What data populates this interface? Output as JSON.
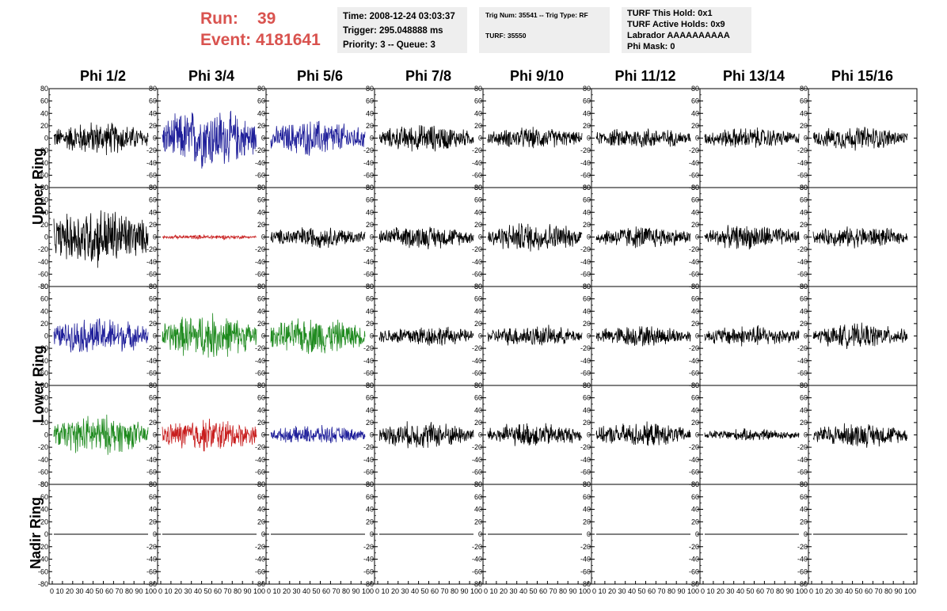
{
  "header": {
    "run_label": "Run:",
    "run_value": "39",
    "event_label": "Event:",
    "event_value": "4181641",
    "time": "Time: 2008-12-24 03:03:37",
    "trigger": "Trigger: 295.048888 ms",
    "priority": "Priority: 3 -- Queue: 3",
    "trig_num": "Trig Num: 35541 -- Trig Type: RF",
    "turf": "TURF: 35550",
    "turf_this_hold": "TURF This Hold: 0x1",
    "turf_active_holds": "TURF Active Holds: 0x9",
    "labrador": "Labrador AAAAAAAAAA",
    "phi_mask": "Phi Mask: 0"
  },
  "columns": [
    "Phi 1/2",
    "Phi 3/4",
    "Phi 5/6",
    "Phi 7/8",
    "Phi 9/10",
    "Phi 11/12",
    "Phi 13/14",
    "Phi 15/16"
  ],
  "rows": [
    "Upper Ring",
    "",
    "Lower Ring",
    "",
    "Nadir Ring"
  ],
  "colors": {
    "black": "#000000",
    "blue": "#1f1f9a",
    "green": "#1e8a1e",
    "red": "#c81e1e"
  },
  "chart_data": {
    "type": "line",
    "ylim": [
      -80,
      80
    ],
    "xlim": [
      0,
      100
    ],
    "y_ticks": [
      80,
      60,
      40,
      20,
      0,
      -20,
      -40,
      -60,
      -80
    ],
    "x_tick_label": "0 10 20 30 40 50 60 70 80 90 100",
    "panels": [
      [
        {
          "color": "black",
          "amp": 22
        },
        {
          "color": "blue",
          "amp": 40
        },
        {
          "color": "blue",
          "amp": 24
        },
        {
          "color": "black",
          "amp": 18
        },
        {
          "color": "black",
          "amp": 14
        },
        {
          "color": "black",
          "amp": 14
        },
        {
          "color": "black",
          "amp": 14
        },
        {
          "color": "black",
          "amp": 16
        }
      ],
      [
        {
          "color": "black",
          "amp": 40
        },
        {
          "color": "red",
          "amp": 3
        },
        {
          "color": "black",
          "amp": 14
        },
        {
          "color": "black",
          "amp": 15
        },
        {
          "color": "black",
          "amp": 20
        },
        {
          "color": "black",
          "amp": 15
        },
        {
          "color": "black",
          "amp": 16
        },
        {
          "color": "black",
          "amp": 14
        }
      ],
      [
        {
          "color": "blue",
          "amp": 24
        },
        {
          "color": "green",
          "amp": 30
        },
        {
          "color": "green",
          "amp": 24
        },
        {
          "color": "black",
          "amp": 14
        },
        {
          "color": "black",
          "amp": 14
        },
        {
          "color": "black",
          "amp": 14
        },
        {
          "color": "black",
          "amp": 14
        },
        {
          "color": "black",
          "amp": 16
        }
      ],
      [
        {
          "color": "green",
          "amp": 26
        },
        {
          "color": "red",
          "amp": 22
        },
        {
          "color": "blue",
          "amp": 12
        },
        {
          "color": "black",
          "amp": 18
        },
        {
          "color": "black",
          "amp": 16
        },
        {
          "color": "black",
          "amp": 16
        },
        {
          "color": "black",
          "amp": 8
        },
        {
          "color": "black",
          "amp": 16
        }
      ],
      [
        {
          "color": "black",
          "amp": 0
        },
        {
          "color": "black",
          "amp": 0
        },
        {
          "color": "black",
          "amp": 0
        },
        {
          "color": "black",
          "amp": 0
        },
        {
          "color": "black",
          "amp": 0
        },
        {
          "color": "black",
          "amp": 0
        },
        {
          "color": "black",
          "amp": 0
        },
        {
          "color": "black",
          "amp": 0
        }
      ]
    ]
  }
}
